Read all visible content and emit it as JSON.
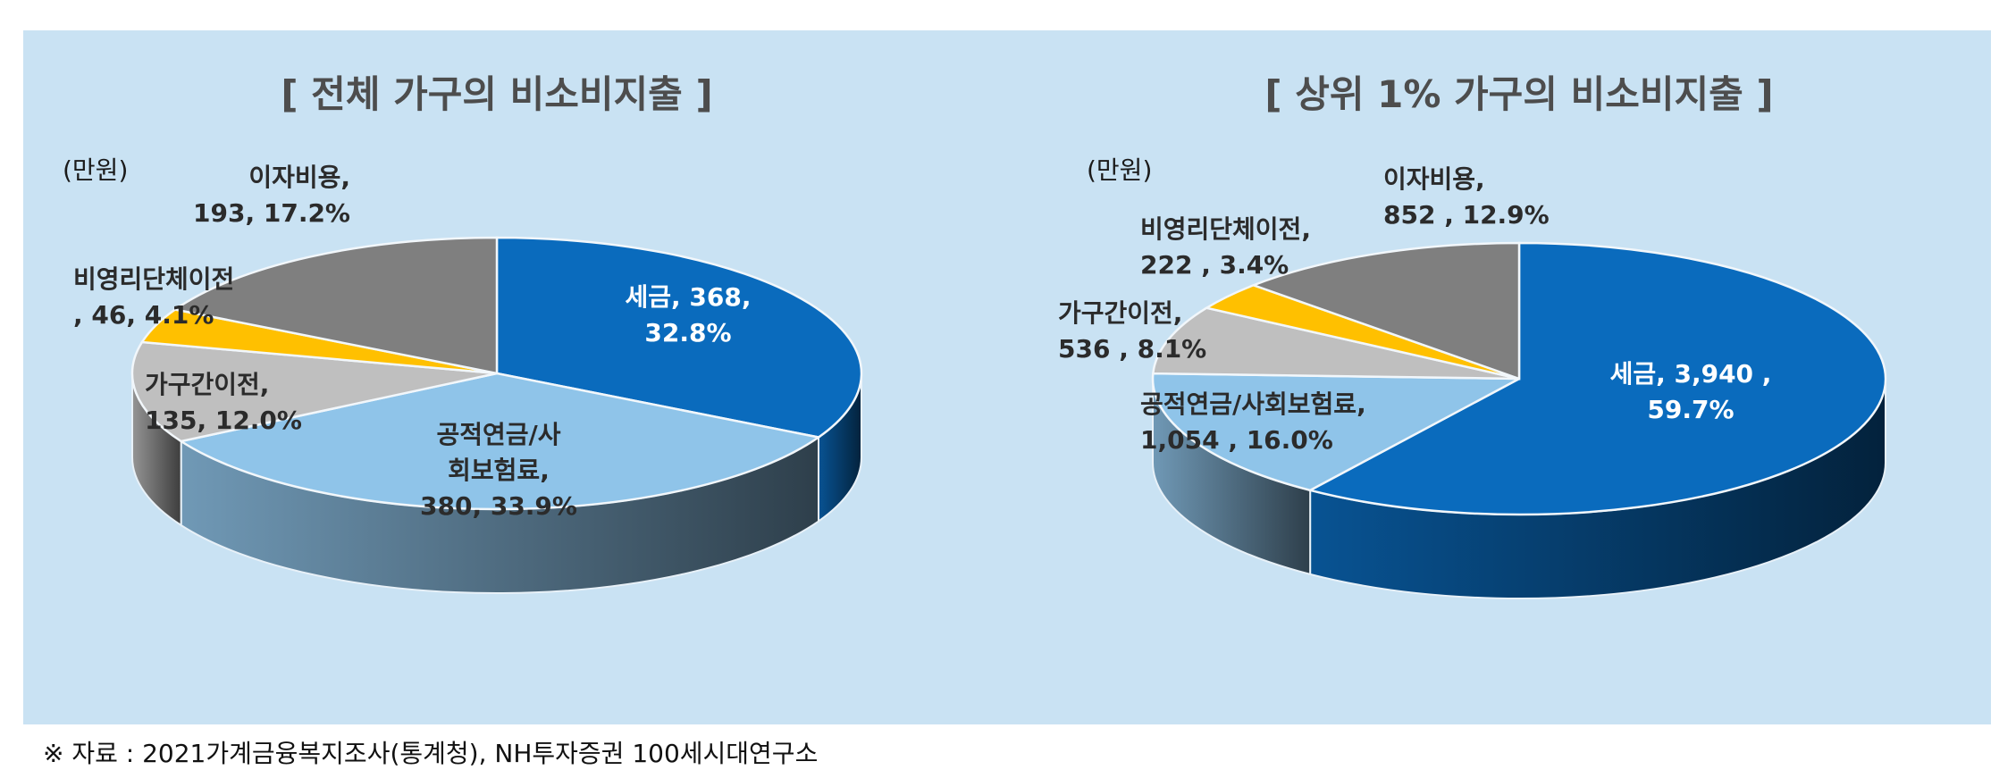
{
  "colors": {
    "panel_bg": "#c9e2f3",
    "tax": "#0a6bbd",
    "pension": "#8fc4e9",
    "transfer": "#bfbfbf",
    "nonprofit": "#ffc000",
    "interest": "#7f7f7f"
  },
  "chart_data": [
    {
      "type": "pie",
      "title": "[ 전체 가구의 비소비지출 ]",
      "unit_label": "(만원)",
      "slices": [
        {
          "key": "tax",
          "label_lines": [
            "세금, 368,",
            "32.8%"
          ],
          "value": 368,
          "percent": 32.8
        },
        {
          "key": "pension",
          "label_lines": [
            "공적연금/사",
            "회보험료,",
            "380, 33.9%"
          ],
          "value": 380,
          "percent": 33.9
        },
        {
          "key": "transfer",
          "label_lines": [
            "가구간이전,",
            "135, 12.0%"
          ],
          "value": 135,
          "percent": 12.0
        },
        {
          "key": "nonprofit",
          "label_lines": [
            "비영리단체이전",
            ", 46, 4.1%"
          ],
          "value": 46,
          "percent": 4.1
        },
        {
          "key": "interest",
          "label_lines": [
            "이자비용,",
            "193, 17.2%"
          ],
          "value": 193,
          "percent": 17.2
        }
      ]
    },
    {
      "type": "pie",
      "title": "[ 상위 1% 가구의 비소비지출 ]",
      "unit_label": "(만원)",
      "slices": [
        {
          "key": "tax",
          "label_lines": [
            "세금, 3,940 ,",
            "59.7%"
          ],
          "value": 3940,
          "percent": 59.7
        },
        {
          "key": "pension",
          "label_lines": [
            "공적연금/사회보험료,",
            "1,054 , 16.0%"
          ],
          "value": 1054,
          "percent": 16.0
        },
        {
          "key": "transfer",
          "label_lines": [
            "가구간이전,",
            "536 , 8.1%"
          ],
          "value": 536,
          "percent": 8.1
        },
        {
          "key": "nonprofit",
          "label_lines": [
            "비영리단체이전,",
            "222 , 3.4%"
          ],
          "value": 222,
          "percent": 3.4
        },
        {
          "key": "interest",
          "label_lines": [
            "이자비용,",
            "852 , 12.9%"
          ],
          "value": 852,
          "percent": 12.9
        }
      ]
    }
  ],
  "source": "※ 자료 : 2021가계금융복지조사(통계청), NH투자증권 100세시대연구소"
}
